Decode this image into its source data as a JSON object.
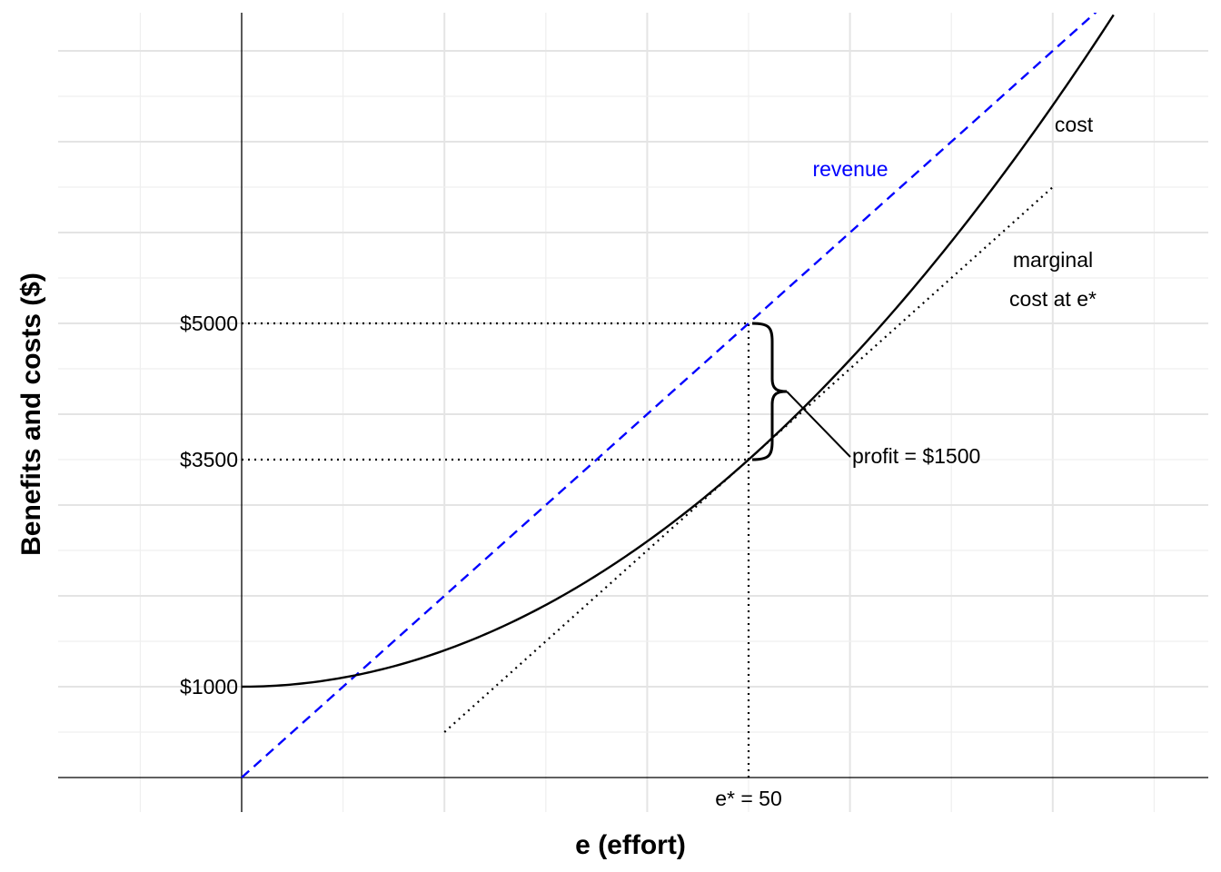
{
  "chart_data": {
    "type": "line",
    "title": "",
    "xlabel": "e (effort)",
    "ylabel": "Benefits and costs ($)",
    "xlim": [
      -18,
      95
    ],
    "ylim": [
      0,
      8400
    ],
    "grid": true,
    "legend": "none",
    "x_tick_labels": [
      {
        "x": 50,
        "label": "e* = 50"
      }
    ],
    "y_tick_labels": [
      {
        "y": 1000,
        "label": "$1000"
      },
      {
        "y": 3500,
        "label": "$3500"
      },
      {
        "y": 5000,
        "label": "$5000"
      }
    ],
    "series": [
      {
        "name": "revenue",
        "function": "100*e",
        "x_range": [
          0,
          85
        ],
        "color": "#0000ff",
        "style": "dashed"
      },
      {
        "name": "cost",
        "function": "1000 + e^2",
        "x_range": [
          0,
          86
        ],
        "color": "#000000",
        "style": "solid"
      },
      {
        "name": "marginal cost at e*",
        "function": "100*e - 1500",
        "x_range": [
          20,
          80
        ],
        "color": "#000000",
        "style": "dotted"
      }
    ],
    "reference_lines": [
      {
        "type": "vertical",
        "x": 50,
        "y_range": [
          0,
          5000
        ],
        "style": "dotted"
      },
      {
        "type": "horizontal",
        "y": 5000,
        "x_range": [
          0,
          50
        ],
        "style": "dotted"
      },
      {
        "type": "horizontal",
        "y": 3500,
        "x_range": [
          0,
          50
        ],
        "style": "dotted"
      }
    ],
    "annotations": {
      "revenue": {
        "text": "revenue",
        "color": "#0000ff"
      },
      "cost": {
        "text": "cost"
      },
      "marginal_line1": {
        "text": "marginal"
      },
      "marginal_line2": {
        "text": "cost at e*"
      },
      "profit": {
        "text": "profit = $1500",
        "from_y": 3500,
        "to_y": 5000
      }
    }
  }
}
